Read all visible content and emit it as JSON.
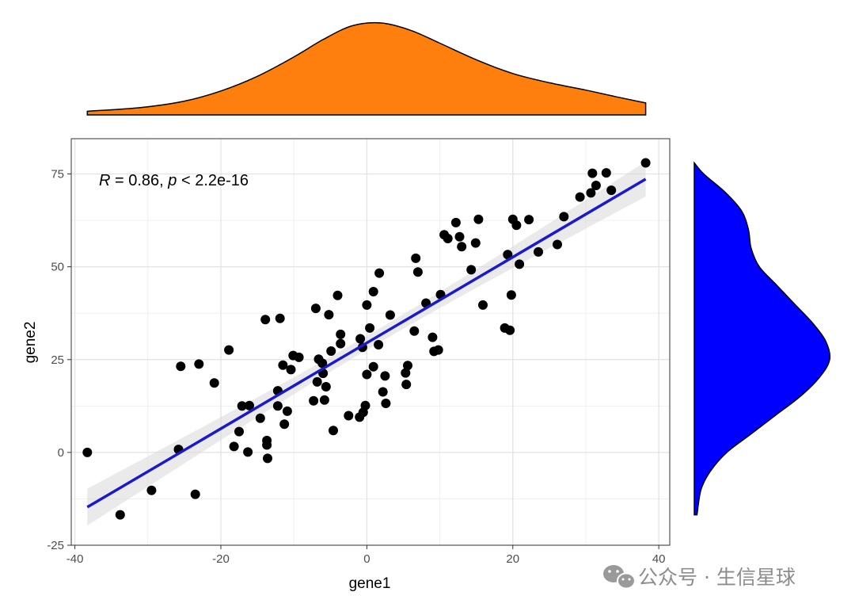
{
  "chart_data": {
    "type": "scatter",
    "xlabel": "gene1",
    "ylabel": "gene2",
    "xlim": [
      -40.5,
      41.5
    ],
    "ylim": [
      -25,
      84.5
    ],
    "x_ticks": [
      -40,
      -20,
      0,
      20,
      40
    ],
    "y_ticks": [
      -25,
      0,
      25,
      50,
      75
    ],
    "grid": true,
    "annotation": {
      "r_symbol": "R",
      "r_text": " = 0.86, ",
      "p_symbol": "p",
      "p_text": " < 2.2e-16"
    },
    "regression": {
      "x_range": [
        -38.3,
        38.2
      ],
      "intercept": 29.5,
      "slope": 1.155,
      "color": "#1a1acd",
      "band_color": "#d9d9d9"
    },
    "point_color": "#000000",
    "points": [
      {
        "x": -38.3,
        "y": 0
      },
      {
        "x": -33.8,
        "y": -16.8
      },
      {
        "x": -29.5,
        "y": -10.2
      },
      {
        "x": -25.8,
        "y": 0.8
      },
      {
        "x": -25.5,
        "y": 23.2
      },
      {
        "x": -23.5,
        "y": -11.3
      },
      {
        "x": -23.0,
        "y": 23.8
      },
      {
        "x": -20.9,
        "y": 18.7
      },
      {
        "x": -18.9,
        "y": 27.6
      },
      {
        "x": -18.2,
        "y": 1.6
      },
      {
        "x": -17.5,
        "y": 5.6
      },
      {
        "x": -17.1,
        "y": 12.5
      },
      {
        "x": -16.3,
        "y": 0.1
      },
      {
        "x": -16.1,
        "y": 12.6
      },
      {
        "x": -14.6,
        "y": 9.2
      },
      {
        "x": -13.9,
        "y": 35.8
      },
      {
        "x": -13.7,
        "y": 2.0
      },
      {
        "x": -13.7,
        "y": 3.2
      },
      {
        "x": -13.6,
        "y": -1.6
      },
      {
        "x": -12.2,
        "y": 16.6
      },
      {
        "x": -12.2,
        "y": 12.5
      },
      {
        "x": -11.9,
        "y": 36.1
      },
      {
        "x": -11.5,
        "y": 23.5
      },
      {
        "x": -11.3,
        "y": 7.6
      },
      {
        "x": -10.9,
        "y": 11.1
      },
      {
        "x": -10.4,
        "y": 22.3
      },
      {
        "x": -10.1,
        "y": 26.1
      },
      {
        "x": -9.3,
        "y": 25.6
      },
      {
        "x": -7.3,
        "y": 13.9
      },
      {
        "x": -7.0,
        "y": 38.8
      },
      {
        "x": -6.8,
        "y": 19.0
      },
      {
        "x": -6.6,
        "y": 25.1
      },
      {
        "x": -6.1,
        "y": 24.0
      },
      {
        "x": -6.0,
        "y": 21.3
      },
      {
        "x": -5.8,
        "y": 14.1
      },
      {
        "x": -5.6,
        "y": 17.7
      },
      {
        "x": -5.2,
        "y": 37.1
      },
      {
        "x": -4.9,
        "y": 27.3
      },
      {
        "x": -4.6,
        "y": 5.9
      },
      {
        "x": -4.0,
        "y": 42.3
      },
      {
        "x": -3.6,
        "y": 31.8
      },
      {
        "x": -3.6,
        "y": 29.3
      },
      {
        "x": -2.5,
        "y": 9.9
      },
      {
        "x": -1.0,
        "y": 9.5
      },
      {
        "x": -0.9,
        "y": 30.6
      },
      {
        "x": -0.6,
        "y": 28.3
      },
      {
        "x": -0.5,
        "y": 10.8
      },
      {
        "x": -0.2,
        "y": 12.6
      },
      {
        "x": 0.0,
        "y": 39.7
      },
      {
        "x": 0.0,
        "y": 21.0
      },
      {
        "x": 0.4,
        "y": 33.5
      },
      {
        "x": 0.9,
        "y": 43.3
      },
      {
        "x": 0.9,
        "y": 23.1
      },
      {
        "x": 1.6,
        "y": 29.0
      },
      {
        "x": 1.7,
        "y": 48.3
      },
      {
        "x": 2.2,
        "y": 16.3
      },
      {
        "x": 2.5,
        "y": 20.6
      },
      {
        "x": 2.6,
        "y": 13.2
      },
      {
        "x": 3.2,
        "y": 37.0
      },
      {
        "x": 5.3,
        "y": 21.4
      },
      {
        "x": 5.4,
        "y": 18.3
      },
      {
        "x": 5.6,
        "y": 23.4
      },
      {
        "x": 6.5,
        "y": 32.7
      },
      {
        "x": 6.7,
        "y": 52.3
      },
      {
        "x": 7.0,
        "y": 48.6
      },
      {
        "x": 8.1,
        "y": 40.2
      },
      {
        "x": 9.0,
        "y": 31.0
      },
      {
        "x": 9.2,
        "y": 27.2
      },
      {
        "x": 9.8,
        "y": 27.6
      },
      {
        "x": 10.1,
        "y": 42.5
      },
      {
        "x": 10.6,
        "y": 58.6
      },
      {
        "x": 11.1,
        "y": 57.6
      },
      {
        "x": 12.2,
        "y": 61.9
      },
      {
        "x": 12.7,
        "y": 58.1
      },
      {
        "x": 13.0,
        "y": 55.4
      },
      {
        "x": 14.3,
        "y": 49.2
      },
      {
        "x": 14.9,
        "y": 56.4
      },
      {
        "x": 15.3,
        "y": 62.8
      },
      {
        "x": 15.9,
        "y": 39.7
      },
      {
        "x": 18.9,
        "y": 33.5
      },
      {
        "x": 19.3,
        "y": 53.3
      },
      {
        "x": 19.6,
        "y": 32.9
      },
      {
        "x": 19.8,
        "y": 42.4
      },
      {
        "x": 20.0,
        "y": 62.8
      },
      {
        "x": 20.5,
        "y": 61.2
      },
      {
        "x": 20.9,
        "y": 50.7
      },
      {
        "x": 22.2,
        "y": 62.7
      },
      {
        "x": 23.5,
        "y": 54.0
      },
      {
        "x": 26.1,
        "y": 56.0
      },
      {
        "x": 27.0,
        "y": 63.5
      },
      {
        "x": 29.2,
        "y": 68.8
      },
      {
        "x": 30.7,
        "y": 69.9
      },
      {
        "x": 30.9,
        "y": 75.2
      },
      {
        "x": 31.4,
        "y": 71.9
      },
      {
        "x": 32.8,
        "y": 75.3
      },
      {
        "x": 33.5,
        "y": 70.6
      },
      {
        "x": 38.2,
        "y": 78.0
      }
    ],
    "density_top": {
      "color": "#ff7f0e",
      "x": [
        -38.3,
        -31,
        -25,
        -20,
        -15,
        -10,
        -6,
        -2,
        2,
        6,
        10,
        15,
        20,
        25,
        30,
        34,
        38.2
      ],
      "density": [
        0.04,
        0.08,
        0.15,
        0.26,
        0.42,
        0.63,
        0.82,
        0.97,
        1.0,
        0.92,
        0.78,
        0.6,
        0.45,
        0.35,
        0.27,
        0.2,
        0.13
      ]
    },
    "density_right": {
      "color": "#0000ff",
      "y": [
        -16.8,
        -10,
        -5,
        0,
        5,
        10,
        15,
        20,
        25,
        30,
        35,
        40,
        45,
        50,
        55,
        60,
        65,
        70,
        75,
        78
      ],
      "density": [
        0.02,
        0.05,
        0.12,
        0.24,
        0.42,
        0.6,
        0.78,
        0.92,
        1.0,
        0.97,
        0.87,
        0.74,
        0.61,
        0.48,
        0.42,
        0.4,
        0.35,
        0.23,
        0.07,
        0.0
      ]
    }
  },
  "watermark": {
    "icon": "wechat-icon",
    "text": "公众号 · 生信星球"
  }
}
